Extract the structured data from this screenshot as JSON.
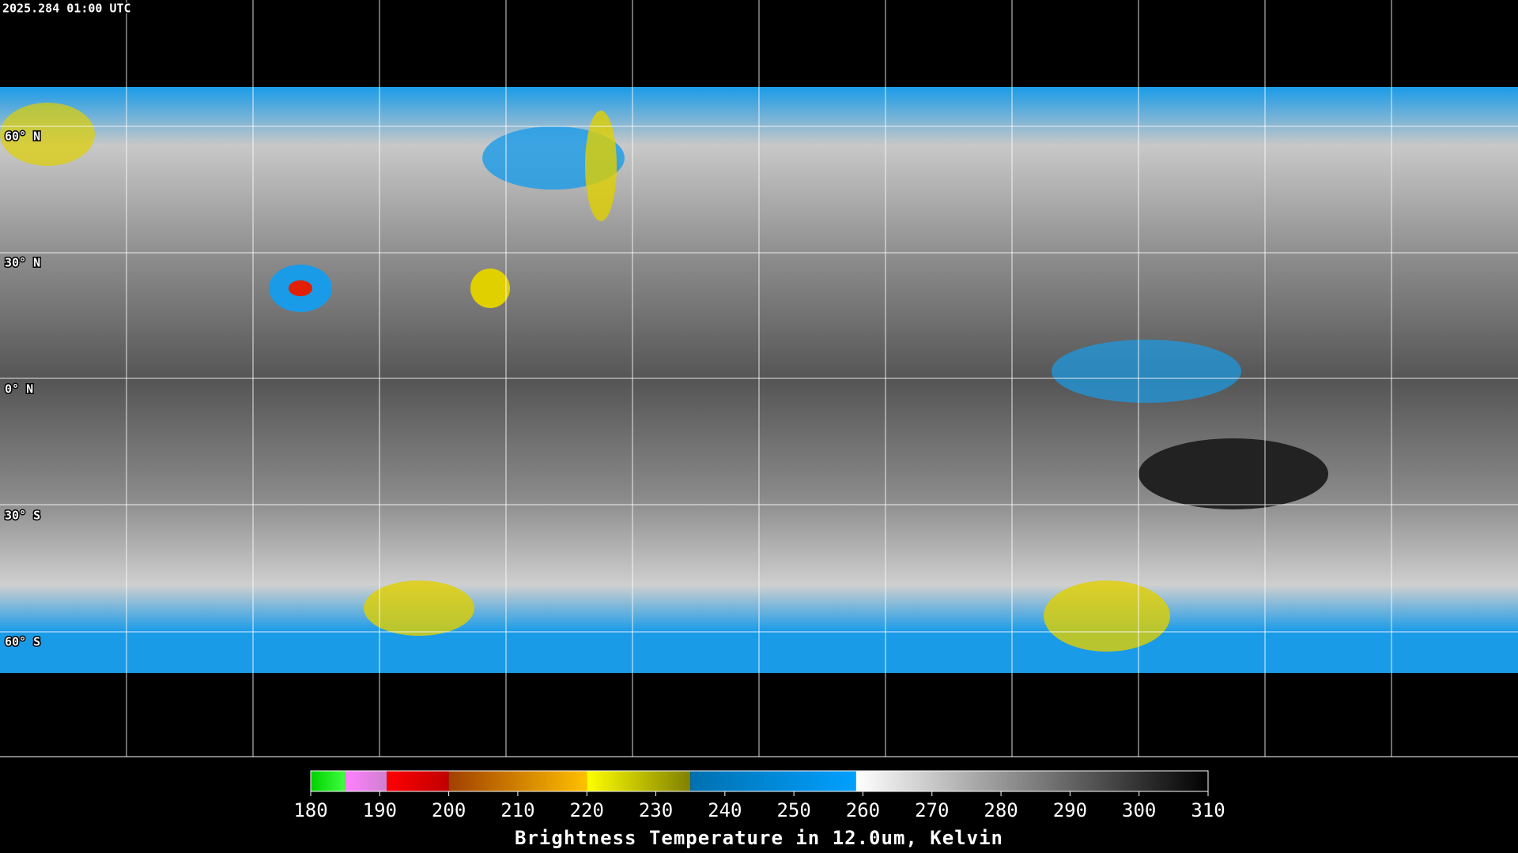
{
  "timestamp": "2025.284 01:00 UTC",
  "latitude_labels": [
    "60° N",
    "30° N",
    "0° N",
    "30° S",
    "60° S"
  ],
  "colorbar": {
    "title": "Brightness Temperature in 12.0um, Kelvin",
    "range": [
      180,
      310
    ],
    "ticks": [
      180,
      190,
      200,
      210,
      220,
      230,
      240,
      250,
      260,
      270,
      280,
      290,
      300,
      310
    ],
    "segments": [
      {
        "from": 180,
        "to": 185,
        "colors": [
          "#00d000",
          "#40ff40"
        ]
      },
      {
        "from": 185,
        "to": 191,
        "colors": [
          "#ff80ff",
          "#d080d0"
        ]
      },
      {
        "from": 191,
        "to": 200,
        "colors": [
          "#ff0000",
          "#c00000"
        ]
      },
      {
        "from": 200,
        "to": 220,
        "colors": [
          "#a04000",
          "#ffc000"
        ]
      },
      {
        "from": 220,
        "to": 235,
        "colors": [
          "#ffff00",
          "#808000"
        ]
      },
      {
        "from": 235,
        "to": 259,
        "colors": [
          "#0070b0",
          "#00a0ff"
        ]
      },
      {
        "from": 259,
        "to": 310,
        "colors": [
          "#ffffff",
          "#000000"
        ]
      }
    ]
  }
}
